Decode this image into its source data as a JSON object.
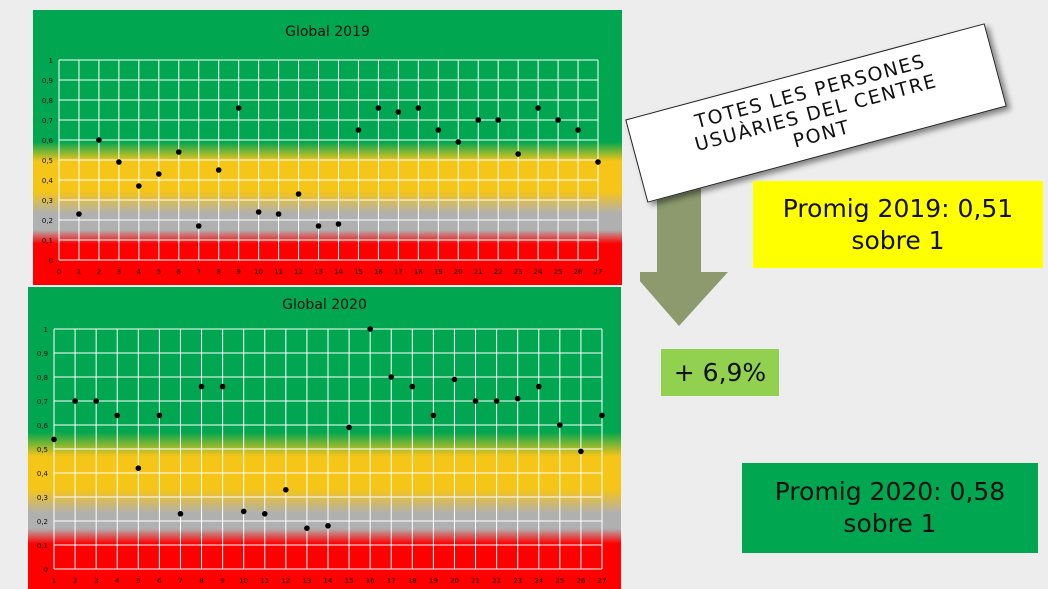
{
  "chart_data": [
    {
      "type": "scatter",
      "title": "Global 2019",
      "xlabel": "",
      "ylabel": "",
      "x": [
        1,
        2,
        3,
        4,
        5,
        6,
        7,
        8,
        9,
        10,
        11,
        12,
        13,
        14,
        15,
        16,
        17,
        18,
        19,
        20,
        21,
        22,
        23,
        24,
        25,
        26,
        27
      ],
      "y": [
        0.23,
        0.6,
        0.49,
        0.37,
        0.43,
        0.54,
        0.17,
        0.45,
        0.76,
        0.24,
        0.23,
        0.33,
        0.17,
        0.18,
        0.65,
        0.76,
        0.74,
        0.76,
        0.65,
        0.59,
        0.7,
        0.7,
        0.53,
        0.76,
        0.7,
        0.65,
        0.49
      ],
      "xlim": [
        0,
        27
      ],
      "ylim": [
        0,
        1
      ],
      "x_ticks": [
        "0",
        "1",
        "2",
        "3",
        "4",
        "5",
        "6",
        "7",
        "8",
        "9",
        "10",
        "11",
        "12",
        "13",
        "14",
        "15",
        "16",
        "17",
        "18",
        "19",
        "20",
        "21",
        "22",
        "23",
        "24",
        "25",
        "26",
        "27"
      ],
      "y_ticks": [
        "0",
        "0,1",
        "0,2",
        "0,3",
        "0,4",
        "0,5",
        "0,6",
        "0,7",
        "0,8",
        "0,9",
        "1"
      ],
      "grid": true,
      "point_color": "#000000",
      "background_bands": {
        "green": "#00a650",
        "yellow": "#f5c518",
        "gray": "#b0b0b0",
        "red": "#ff0000"
      }
    },
    {
      "type": "scatter",
      "title": "Global 2020",
      "xlabel": "",
      "ylabel": "",
      "x": [
        1,
        2,
        3,
        4,
        5,
        6,
        7,
        8,
        9,
        10,
        11,
        12,
        13,
        14,
        15,
        16,
        17,
        18,
        19,
        20,
        21,
        22,
        23,
        24,
        25,
        26,
        27
      ],
      "y": [
        0.54,
        0.7,
        0.7,
        0.64,
        0.42,
        0.64,
        0.23,
        0.76,
        0.76,
        0.24,
        0.23,
        0.33,
        0.17,
        0.18,
        0.59,
        1.0,
        0.8,
        0.76,
        0.64,
        0.79,
        0.7,
        0.7,
        0.71,
        0.76,
        0.6,
        0.49,
        0.64
      ],
      "xlim": [
        1,
        27
      ],
      "ylim": [
        0,
        1
      ],
      "x_ticks": [
        "1",
        "2",
        "3",
        "4",
        "5",
        "6",
        "7",
        "8",
        "9",
        "10",
        "11",
        "12",
        "13",
        "14",
        "15",
        "16",
        "17",
        "18",
        "19",
        "20",
        "21",
        "22",
        "23",
        "24",
        "25",
        "26",
        "27"
      ],
      "y_ticks": [
        "0",
        "0,1",
        "0,2",
        "0,3",
        "0,4",
        "0,5",
        "0,6",
        "0,7",
        "0,8",
        "0,9",
        "1"
      ],
      "grid": true,
      "point_color": "#000000",
      "background_bands": {
        "green": "#00a650",
        "yellow": "#f5c518",
        "gray": "#b0b0b0",
        "red": "#ff0000"
      }
    }
  ],
  "ribbon": {
    "line1": "TOTES LES PERSONES",
    "line2": "USUÀRIES DEL CENTRE",
    "line3": "PONT"
  },
  "summary_2019": {
    "line1": "Promig 2019: 0,51",
    "line2": "sobre 1",
    "color": "#ffff00"
  },
  "change": {
    "text": "+ 6,9%",
    "color": "#92d050"
  },
  "summary_2020": {
    "line1": "Promig 2020: 0,58",
    "line2": "sobre 1",
    "color": "#00a650"
  },
  "arrow_color": "#8c9a6e"
}
